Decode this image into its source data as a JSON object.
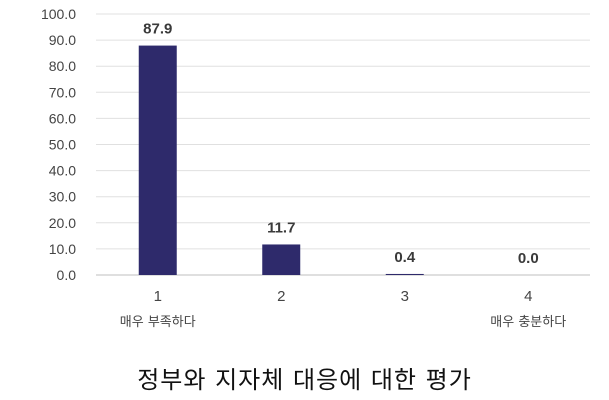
{
  "chart_data": {
    "type": "bar",
    "categories": [
      "1",
      "2",
      "3",
      "4"
    ],
    "category_sublabels": [
      "매우 부족하다",
      "",
      "",
      "매우 충분하다"
    ],
    "values": [
      87.9,
      11.7,
      0.4,
      0.0
    ],
    "data_labels": [
      "87.9",
      "11.7",
      "0.4",
      "0.0"
    ],
    "y_ticks": [
      "0.0",
      "10.0",
      "20.0",
      "30.0",
      "40.0",
      "50.0",
      "60.0",
      "70.0",
      "80.0",
      "90.0",
      "100.0"
    ],
    "ylim": [
      0,
      100
    ],
    "grid": true,
    "bar_color": "#2e2a6b",
    "title": "",
    "xlabel": "",
    "ylabel": ""
  },
  "caption": "정부와 지자체 대응에 대한 평가"
}
